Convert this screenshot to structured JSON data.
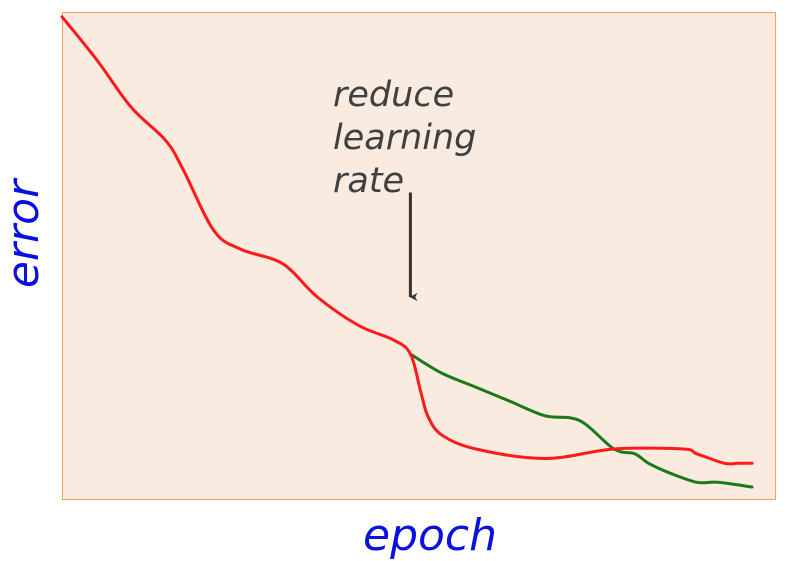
{
  "chart_data": {
    "type": "line",
    "xlabel": "epoch",
    "ylabel": "error",
    "annotation": [
      "reduce",
      "learning",
      "rate"
    ],
    "series": [
      {
        "color": "#ff1a1a",
        "x": [
          0,
          5,
          10,
          15,
          17.5,
          22,
          26,
          32,
          37,
          43,
          48,
          50.5,
          52,
          53,
          55,
          60,
          70,
          80,
          90,
          92,
          96,
          98,
          100
        ],
        "y": [
          99,
          90,
          80,
          73,
          67,
          54,
          50,
          47,
          40,
          34,
          31,
          28,
          20,
          15,
          11,
          8,
          6,
          8,
          8,
          7,
          5,
          5,
          5
        ]
      },
      {
        "color": "#1a7a1a",
        "x": [
          50.5,
          55,
          60,
          65,
          70,
          75,
          80,
          83,
          85,
          88,
          92,
          95,
          100
        ],
        "y": [
          28,
          24,
          21,
          18,
          15,
          14,
          8,
          7,
          5,
          3,
          1,
          1,
          0
        ]
      }
    ],
    "arrow": {
      "x": 50.5,
      "y_top": 62,
      "y_bottom": 40
    },
    "grid": false
  }
}
